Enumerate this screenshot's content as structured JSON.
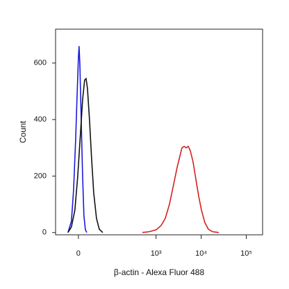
{
  "chart_data": {
    "type": "line",
    "xlabel": "β-actin - Alexa Fluor 488",
    "ylabel": "Count",
    "xscale": "biexponential",
    "xlim": [
      -55,
      230000
    ],
    "ylim": [
      -8,
      720
    ],
    "xticks": [
      0,
      {
        "value": 1000,
        "label": "10³"
      },
      {
        "value": 10000,
        "label": "10⁴"
      },
      {
        "value": 100000,
        "label": "10⁵"
      }
    ],
    "yticks": [
      0,
      200,
      400,
      600
    ],
    "series": [
      {
        "color": "#1a1adb",
        "x": [
          -21.2,
          -13.8,
          -9.5,
          -5.4,
          -2.7,
          0,
          1.3,
          2.7,
          5.4,
          8.2,
          10.9,
          13.8,
          16.7
        ],
        "values": [
          0,
          40,
          150,
          330,
          480,
          620,
          660,
          600,
          400,
          200,
          60,
          10,
          0
        ]
      },
      {
        "color": "#111111",
        "x": [
          -21.2,
          -13.8,
          -6.8,
          -1.35,
          4.0,
          8.2,
          12.3,
          15.2,
          18.2,
          22.7,
          27.6,
          32.8,
          40.3,
          48.6,
          60.4
        ],
        "values": [
          0,
          20,
          80,
          200,
          350,
          470,
          540,
          545,
          510,
          400,
          260,
          140,
          50,
          12,
          0
        ]
      },
      {
        "color": "#d42020",
        "x": [
          496,
          707,
          1009,
          1292,
          1600,
          1978,
          2447,
          2922,
          3367,
          3747,
          4165,
          4632,
          5153,
          5730,
          6604,
          7613,
          8774,
          10112,
          12073,
          14413,
          17837,
          24529
        ],
        "values": [
          0,
          3,
          10,
          25,
          50,
          100,
          170,
          230,
          270,
          300,
          305,
          300,
          305,
          290,
          250,
          190,
          130,
          80,
          35,
          12,
          3,
          0
        ]
      }
    ]
  }
}
